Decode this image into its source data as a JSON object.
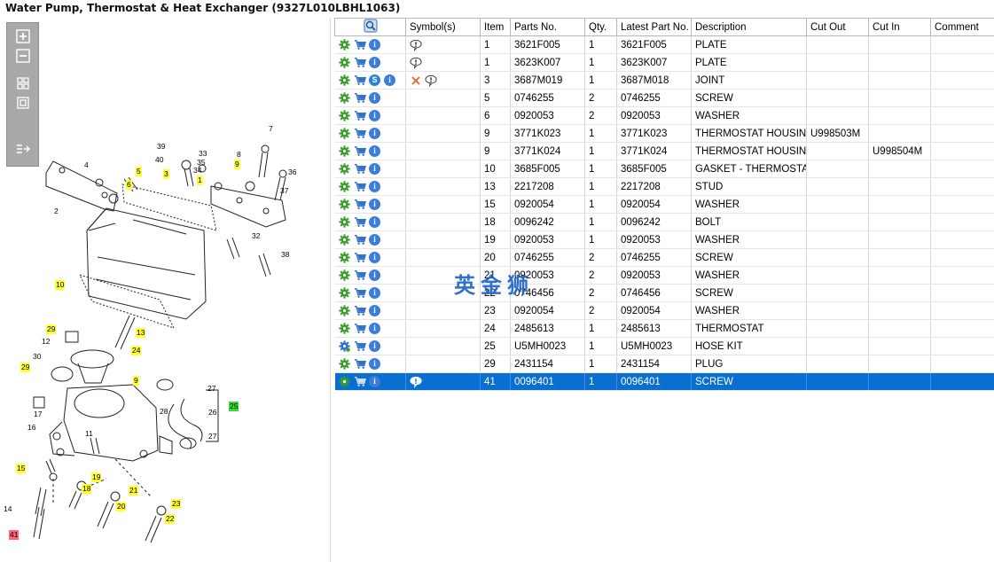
{
  "window_title": "Water Pump, Thermostat & Heat Exchanger (9327L010LBHL1063)",
  "diagram": {
    "toolbar": [
      {
        "name": "zoom-in-icon"
      },
      {
        "name": "zoom-out-icon"
      },
      {
        "name": "fit-all-icon"
      },
      {
        "name": "fit-window-icon"
      },
      {
        "name": "export-icon"
      }
    ],
    "callouts": [
      {
        "label": "7",
        "style": "plain"
      },
      {
        "label": "39",
        "style": "plain"
      },
      {
        "label": "33",
        "style": "plain"
      },
      {
        "label": "8",
        "style": "plain"
      },
      {
        "label": "40",
        "style": "plain"
      },
      {
        "label": "35",
        "style": "plain"
      },
      {
        "label": "9",
        "style": "yellow"
      },
      {
        "label": "34",
        "style": "plain"
      },
      {
        "label": "36",
        "style": "plain"
      },
      {
        "label": "4",
        "style": "plain"
      },
      {
        "label": "5",
        "style": "yellow"
      },
      {
        "label": "3",
        "style": "yellow"
      },
      {
        "label": "1",
        "style": "yellow"
      },
      {
        "label": "6",
        "style": "yellow"
      },
      {
        "label": "37",
        "style": "plain"
      },
      {
        "label": "2",
        "style": "plain"
      },
      {
        "label": "32",
        "style": "plain"
      },
      {
        "label": "38",
        "style": "plain"
      },
      {
        "label": "10",
        "style": "yellow"
      },
      {
        "label": "29",
        "style": "yellow"
      },
      {
        "label": "13",
        "style": "yellow"
      },
      {
        "label": "12",
        "style": "plain"
      },
      {
        "label": "24",
        "style": "yellow"
      },
      {
        "label": "30",
        "style": "plain"
      },
      {
        "label": "29",
        "style": "yellow"
      },
      {
        "label": "9",
        "style": "yellow"
      },
      {
        "label": "27",
        "style": "plain"
      },
      {
        "label": "25",
        "style": "green"
      },
      {
        "label": "26",
        "style": "plain"
      },
      {
        "label": "28",
        "style": "plain"
      },
      {
        "label": "17",
        "style": "plain"
      },
      {
        "label": "11",
        "style": "plain"
      },
      {
        "label": "27",
        "style": "plain"
      },
      {
        "label": "16",
        "style": "plain"
      },
      {
        "label": "15",
        "style": "yellow"
      },
      {
        "label": "19",
        "style": "yellow"
      },
      {
        "label": "18",
        "style": "yellow"
      },
      {
        "label": "21",
        "style": "yellow"
      },
      {
        "label": "14",
        "style": "plain"
      },
      {
        "label": "20",
        "style": "yellow"
      },
      {
        "label": "23",
        "style": "yellow"
      },
      {
        "label": "22",
        "style": "yellow"
      },
      {
        "label": "41",
        "style": "red"
      }
    ]
  },
  "grid": {
    "columns": [
      "",
      "Symbol(s)",
      "Item",
      "Parts No.",
      "Qty.",
      "Latest Part No.",
      "Description",
      "Cut Out",
      "Cut In",
      "Comment"
    ],
    "rows": [
      {
        "icons": [
          "gear",
          "cart",
          "info"
        ],
        "symbols": [
          "note"
        ],
        "item": "1",
        "part": "3621F005",
        "qty": "1",
        "latest": "3621F005",
        "desc": "PLATE",
        "cut_out": "",
        "cut_in": "",
        "comment": "",
        "selected": false
      },
      {
        "icons": [
          "gear",
          "cart",
          "info"
        ],
        "symbols": [
          "note"
        ],
        "item": "1",
        "part": "3623K007",
        "qty": "1",
        "latest": "3623K007",
        "desc": "PLATE",
        "cut_out": "",
        "cut_in": "",
        "comment": "",
        "selected": false
      },
      {
        "icons": [
          "gear",
          "cart",
          "s",
          "info"
        ],
        "symbols": [
          "cross",
          "note"
        ],
        "item": "3",
        "part": "3687M019",
        "qty": "1",
        "latest": "3687M018",
        "desc": "JOINT",
        "cut_out": "",
        "cut_in": "",
        "comment": "",
        "selected": false
      },
      {
        "icons": [
          "gear",
          "cart",
          "info"
        ],
        "symbols": [],
        "item": "5",
        "part": "0746255",
        "qty": "2",
        "latest": "0746255",
        "desc": "SCREW",
        "cut_out": "",
        "cut_in": "",
        "comment": "",
        "selected": false
      },
      {
        "icons": [
          "gear",
          "cart",
          "info"
        ],
        "symbols": [],
        "item": "6",
        "part": "0920053",
        "qty": "2",
        "latest": "0920053",
        "desc": "WASHER",
        "cut_out": "",
        "cut_in": "",
        "comment": "",
        "selected": false
      },
      {
        "icons": [
          "gear",
          "cart",
          "info"
        ],
        "symbols": [],
        "item": "9",
        "part": "3771K023",
        "qty": "1",
        "latest": "3771K023",
        "desc": "THERMOSTAT HOUSING",
        "cut_out": "U998503M",
        "cut_in": "",
        "comment": "",
        "selected": false
      },
      {
        "icons": [
          "gear",
          "cart",
          "info"
        ],
        "symbols": [],
        "item": "9",
        "part": "3771K024",
        "qty": "1",
        "latest": "3771K024",
        "desc": "THERMOSTAT HOUSING",
        "cut_out": "",
        "cut_in": "U998504M",
        "comment": "",
        "selected": false
      },
      {
        "icons": [
          "gear",
          "cart",
          "info"
        ],
        "symbols": [],
        "item": "10",
        "part": "3685F005",
        "qty": "1",
        "latest": "3685F005",
        "desc": "GASKET - THERMOSTAT H",
        "cut_out": "",
        "cut_in": "",
        "comment": "",
        "selected": false
      },
      {
        "icons": [
          "gear",
          "cart",
          "info"
        ],
        "symbols": [],
        "item": "13",
        "part": "2217208",
        "qty": "1",
        "latest": "2217208",
        "desc": "STUD",
        "cut_out": "",
        "cut_in": "",
        "comment": "",
        "selected": false
      },
      {
        "icons": [
          "gear",
          "cart",
          "info"
        ],
        "symbols": [],
        "item": "15",
        "part": "0920054",
        "qty": "1",
        "latest": "0920054",
        "desc": "WASHER",
        "cut_out": "",
        "cut_in": "",
        "comment": "",
        "selected": false
      },
      {
        "icons": [
          "gear",
          "cart",
          "info"
        ],
        "symbols": [],
        "item": "18",
        "part": "0096242",
        "qty": "1",
        "latest": "0096242",
        "desc": "BOLT",
        "cut_out": "",
        "cut_in": "",
        "comment": "",
        "selected": false
      },
      {
        "icons": [
          "gear",
          "cart",
          "info"
        ],
        "symbols": [],
        "item": "19",
        "part": "0920053",
        "qty": "1",
        "latest": "0920053",
        "desc": "WASHER",
        "cut_out": "",
        "cut_in": "",
        "comment": "",
        "selected": false
      },
      {
        "icons": [
          "gear",
          "cart",
          "info"
        ],
        "symbols": [],
        "item": "20",
        "part": "0746255",
        "qty": "2",
        "latest": "0746255",
        "desc": "SCREW",
        "cut_out": "",
        "cut_in": "",
        "comment": "",
        "selected": false
      },
      {
        "icons": [
          "gear",
          "cart",
          "info"
        ],
        "symbols": [],
        "item": "21",
        "part": "0920053",
        "qty": "2",
        "latest": "0920053",
        "desc": "WASHER",
        "cut_out": "",
        "cut_in": "",
        "comment": "",
        "selected": false
      },
      {
        "icons": [
          "gear",
          "cart",
          "info"
        ],
        "symbols": [],
        "item": "22",
        "part": "0746456",
        "qty": "2",
        "latest": "0746456",
        "desc": "SCREW",
        "cut_out": "",
        "cut_in": "",
        "comment": "",
        "selected": false
      },
      {
        "icons": [
          "gear",
          "cart",
          "info"
        ],
        "symbols": [],
        "item": "23",
        "part": "0920054",
        "qty": "2",
        "latest": "0920054",
        "desc": "WASHER",
        "cut_out": "",
        "cut_in": "",
        "comment": "",
        "selected": false
      },
      {
        "icons": [
          "gear",
          "cart",
          "info"
        ],
        "symbols": [],
        "item": "24",
        "part": "2485613",
        "qty": "1",
        "latest": "2485613",
        "desc": "THERMOSTAT",
        "cut_out": "",
        "cut_in": "",
        "comment": "",
        "selected": false
      },
      {
        "icons": [
          "gears",
          "cart",
          "info"
        ],
        "symbols": [],
        "item": "25",
        "part": "U5MH0023",
        "qty": "1",
        "latest": "U5MH0023",
        "desc": "HOSE KIT",
        "cut_out": "",
        "cut_in": "",
        "comment": "",
        "selected": false
      },
      {
        "icons": [
          "gear",
          "cart",
          "info"
        ],
        "symbols": [],
        "item": "29",
        "part": "2431154",
        "qty": "1",
        "latest": "2431154",
        "desc": "PLUG",
        "cut_out": "",
        "cut_in": "",
        "comment": "",
        "selected": false
      },
      {
        "icons": [
          "gear",
          "cart",
          "info"
        ],
        "symbols": [
          "note"
        ],
        "item": "41",
        "part": "0096401",
        "qty": "1",
        "latest": "0096401",
        "desc": "SCREW",
        "cut_out": "",
        "cut_in": "",
        "comment": "",
        "selected": true
      }
    ]
  },
  "watermark": "英金狮",
  "colors": {
    "selection": "#0a6fd1",
    "callout_yellow": "#ffff33",
    "callout_green": "#33dd33",
    "callout_red": "#ff6677",
    "gear_green": "#3a9e2a",
    "cart_blue": "#2f6fcf",
    "info_blue": "#3b7dd8"
  }
}
